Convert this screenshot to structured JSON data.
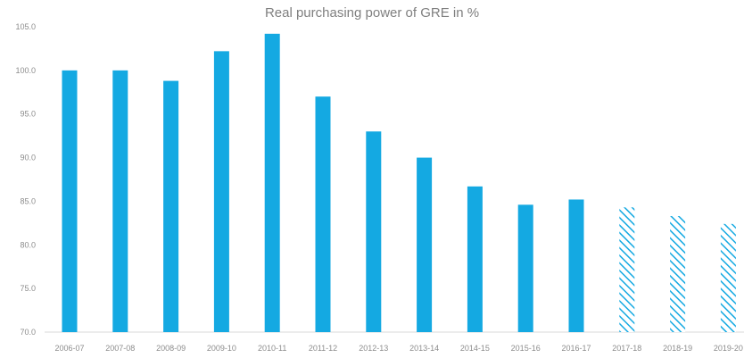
{
  "chart_data": {
    "type": "bar",
    "title": "Real purchasing power of GRE in %",
    "xlabel": "",
    "ylabel": "",
    "ylim": [
      70,
      105
    ],
    "yticks": [
      "70.0",
      "75.0",
      "80.0",
      "85.0",
      "90.0",
      "95.0",
      "100.0",
      "105.0"
    ],
    "categories": [
      "2006-07",
      "2007-08",
      "2008-09",
      "2009-10",
      "2010-11",
      "2011-12",
      "2012-13",
      "2013-14",
      "2014-15",
      "2015-16",
      "2016-17",
      "2017-18",
      "2018-19",
      "2019-20"
    ],
    "values": [
      100.0,
      100.0,
      98.8,
      102.2,
      104.2,
      97.0,
      93.0,
      90.0,
      86.7,
      84.6,
      85.2,
      84.3,
      83.3,
      82.4
    ],
    "projected": [
      false,
      false,
      false,
      false,
      false,
      false,
      false,
      false,
      false,
      false,
      false,
      true,
      true,
      true
    ],
    "grid": false,
    "legend": "none",
    "colors": {
      "bar": "#14a9e2",
      "axis": "#d9d9d9",
      "text": "#8c8c8c"
    }
  }
}
